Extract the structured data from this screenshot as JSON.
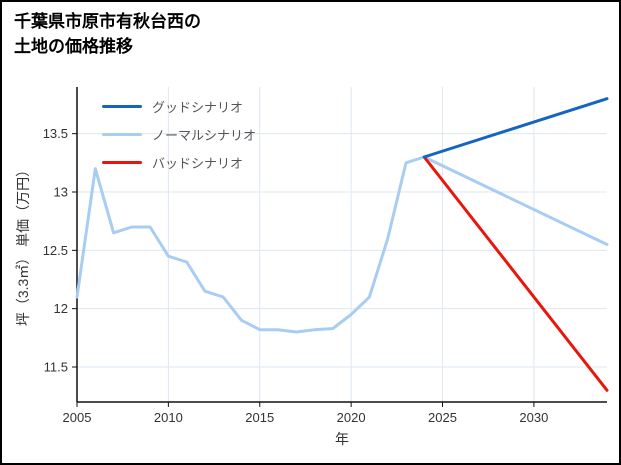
{
  "header": {
    "title_line1": "千葉県市原市有秋台西の",
    "title_line2": "土地の価格推移"
  },
  "chart_data": {
    "type": "line",
    "title": "千葉県市原市有秋台西の土地の価格推移",
    "xlabel": "年",
    "ylabel": "坪（3.3㎡） 単価（万円）",
    "xlim": [
      2005,
      2034
    ],
    "ylim": [
      11.2,
      13.9
    ],
    "grid": true,
    "grid_color": "#dde7f3",
    "axis_color": "#111111",
    "tick_label_color": "#333333",
    "legend_position": "top-left",
    "x_ticks": [
      2005,
      2010,
      2015,
      2020,
      2025,
      2030
    ],
    "x_tick_labels": [
      "2005",
      "2010",
      "2015",
      "2020",
      "2025",
      "2030"
    ],
    "y_ticks": [
      11.5,
      12,
      12.5,
      13,
      13.5
    ],
    "y_tick_labels": [
      "11.5",
      "12",
      "12.5",
      "13",
      "13.5"
    ],
    "series": [
      {
        "name": "グッドシナリオ",
        "color": "#1565c0",
        "x": [
          2024,
          2034
        ],
        "values": [
          13.3,
          13.8
        ]
      },
      {
        "name": "ノーマルシナリオ",
        "color": "#a9cdf2",
        "x": [
          2005,
          2006,
          2007,
          2008,
          2009,
          2010,
          2011,
          2012,
          2013,
          2014,
          2015,
          2016,
          2017,
          2018,
          2019,
          2020,
          2021,
          2022,
          2023,
          2024,
          2034
        ],
        "values": [
          12.1,
          13.2,
          12.65,
          12.7,
          12.7,
          12.45,
          12.4,
          12.15,
          12.1,
          11.9,
          11.82,
          11.82,
          11.8,
          11.82,
          11.83,
          11.95,
          12.1,
          12.6,
          13.25,
          13.3,
          12.55
        ]
      },
      {
        "name": "バッドシナリオ",
        "color": "#e8160c",
        "x": [
          2024,
          2034
        ],
        "values": [
          13.3,
          11.3
        ]
      }
    ]
  }
}
